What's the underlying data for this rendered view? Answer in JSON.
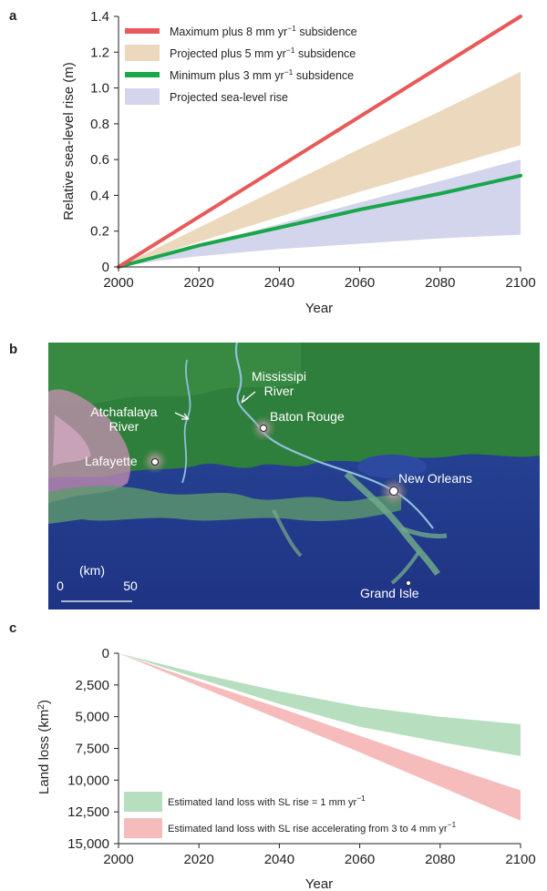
{
  "chart_data": [
    {
      "panel": "a",
      "type": "line",
      "xlabel": "Year",
      "ylabel": "Relative sea-level rise (m)",
      "xlim": [
        2000,
        2100
      ],
      "ylim": [
        0,
        1.4
      ],
      "xticks": [
        "2000",
        "2020",
        "2040",
        "2060",
        "2080",
        "2100"
      ],
      "yticks": [
        "0",
        "0.2",
        "0.4",
        "0.6",
        "0.8",
        "1.0",
        "1.2",
        "1.4"
      ],
      "legend_position": "top-left",
      "series": [
        {
          "name": "Maximum plus 8 mm yr−1 subsidence",
          "name_parts": [
            "Maximum plus 8 mm yr",
            "−1",
            " subsidence"
          ],
          "kind": "line",
          "color": "#e8595a",
          "x": [
            2000,
            2100
          ],
          "y": [
            0,
            1.4
          ]
        },
        {
          "name": "Projected plus 5 mm yr−1 subsidence",
          "name_parts": [
            "Projected plus 5 mm yr",
            "−1",
            " subsidence"
          ],
          "kind": "band",
          "color": "#ecd9bd",
          "x": [
            2000,
            2010,
            2020,
            2040,
            2060,
            2080,
            2100
          ],
          "lower": [
            0,
            0.07,
            0.14,
            0.28,
            0.42,
            0.55,
            0.68
          ],
          "upper": [
            0,
            0.11,
            0.22,
            0.44,
            0.66,
            0.87,
            1.09
          ]
        },
        {
          "name": "Minimum plus 3 mm yr−1 subsidence",
          "name_parts": [
            "Minimum plus 3 mm yr",
            "−1",
            " subsidence"
          ],
          "kind": "line",
          "color": "#1aa64a",
          "x": [
            2000,
            2020,
            2040,
            2060,
            2080,
            2100
          ],
          "y": [
            0,
            0.12,
            0.22,
            0.32,
            0.41,
            0.51
          ]
        },
        {
          "name": "Projected sea-level rise",
          "name_parts": [
            "Projected sea-level rise",
            "",
            ""
          ],
          "kind": "band",
          "color": "#d3d5ec",
          "x": [
            2000,
            2010,
            2020,
            2040,
            2060,
            2080,
            2100
          ],
          "lower": [
            0,
            0.035,
            0.06,
            0.1,
            0.13,
            0.16,
            0.18
          ],
          "upper": [
            0,
            0.06,
            0.12,
            0.24,
            0.36,
            0.48,
            0.6
          ]
        }
      ]
    },
    {
      "panel": "c",
      "type": "area",
      "xlabel": "Year",
      "ylabel": "Land loss (km²)",
      "ylabel_parts": [
        "Land loss (km",
        "2",
        ")"
      ],
      "xlim": [
        2000,
        2100
      ],
      "ylim": [
        0,
        15000
      ],
      "y_inverted": true,
      "xticks": [
        "2000",
        "2020",
        "2040",
        "2060",
        "2080",
        "2100"
      ],
      "yticks": [
        "0",
        "2,500",
        "5,000",
        "7,500",
        "10,000",
        "12,500",
        "15,000"
      ],
      "legend_position": "bottom-left",
      "series": [
        {
          "name": "Estimated land loss with SL rise = 1 mm yr−1",
          "name_parts": [
            "Estimated land loss with SL rise = 1 mm yr",
            "−1",
            ""
          ],
          "kind": "band",
          "color": "#b7dfbf",
          "x": [
            2000,
            2020,
            2040,
            2060,
            2080,
            2100
          ],
          "lower": [
            0,
            1600,
            3000,
            4200,
            5000,
            5600
          ],
          "upper": [
            0,
            2000,
            4000,
            5800,
            7000,
            8100
          ]
        },
        {
          "name": "Estimated land loss with SL rise accelerating from 3 to 4 mm yr−1",
          "name_parts": [
            "Estimated land loss with SL rise accelerating from 3 to 4 mm yr",
            "−1",
            ""
          ],
          "kind": "band",
          "color": "#f6bcbc",
          "x": [
            2000,
            2020,
            2040,
            2060,
            2080,
            2100
          ],
          "lower": [
            0,
            2200,
            4300,
            6500,
            8700,
            10800
          ],
          "upper": [
            0,
            2600,
            5200,
            7800,
            10500,
            13200
          ]
        }
      ]
    }
  ],
  "panels": {
    "a": "a",
    "b": "b",
    "c": "c"
  },
  "map": {
    "places": [
      {
        "key": "mississipi",
        "lines": [
          "Mississipi",
          "River"
        ]
      },
      {
        "key": "atchafalaya",
        "lines": [
          "Atchafalaya",
          "River"
        ]
      },
      {
        "key": "baton_rouge",
        "lines": [
          "Baton Rouge"
        ]
      },
      {
        "key": "lafayette",
        "lines": [
          "Lafayette"
        ]
      },
      {
        "key": "new_orleans",
        "lines": [
          "New Orleans"
        ]
      },
      {
        "key": "grand_isle",
        "lines": [
          "Grand Isle"
        ]
      }
    ],
    "scale_bar": {
      "unit": "(km)",
      "min": "0",
      "max": "50"
    },
    "colors": {
      "sea": "#243b8c",
      "land": "#2e7d3a",
      "urban": "#c98bb0",
      "river": "#7fb3d3"
    }
  }
}
